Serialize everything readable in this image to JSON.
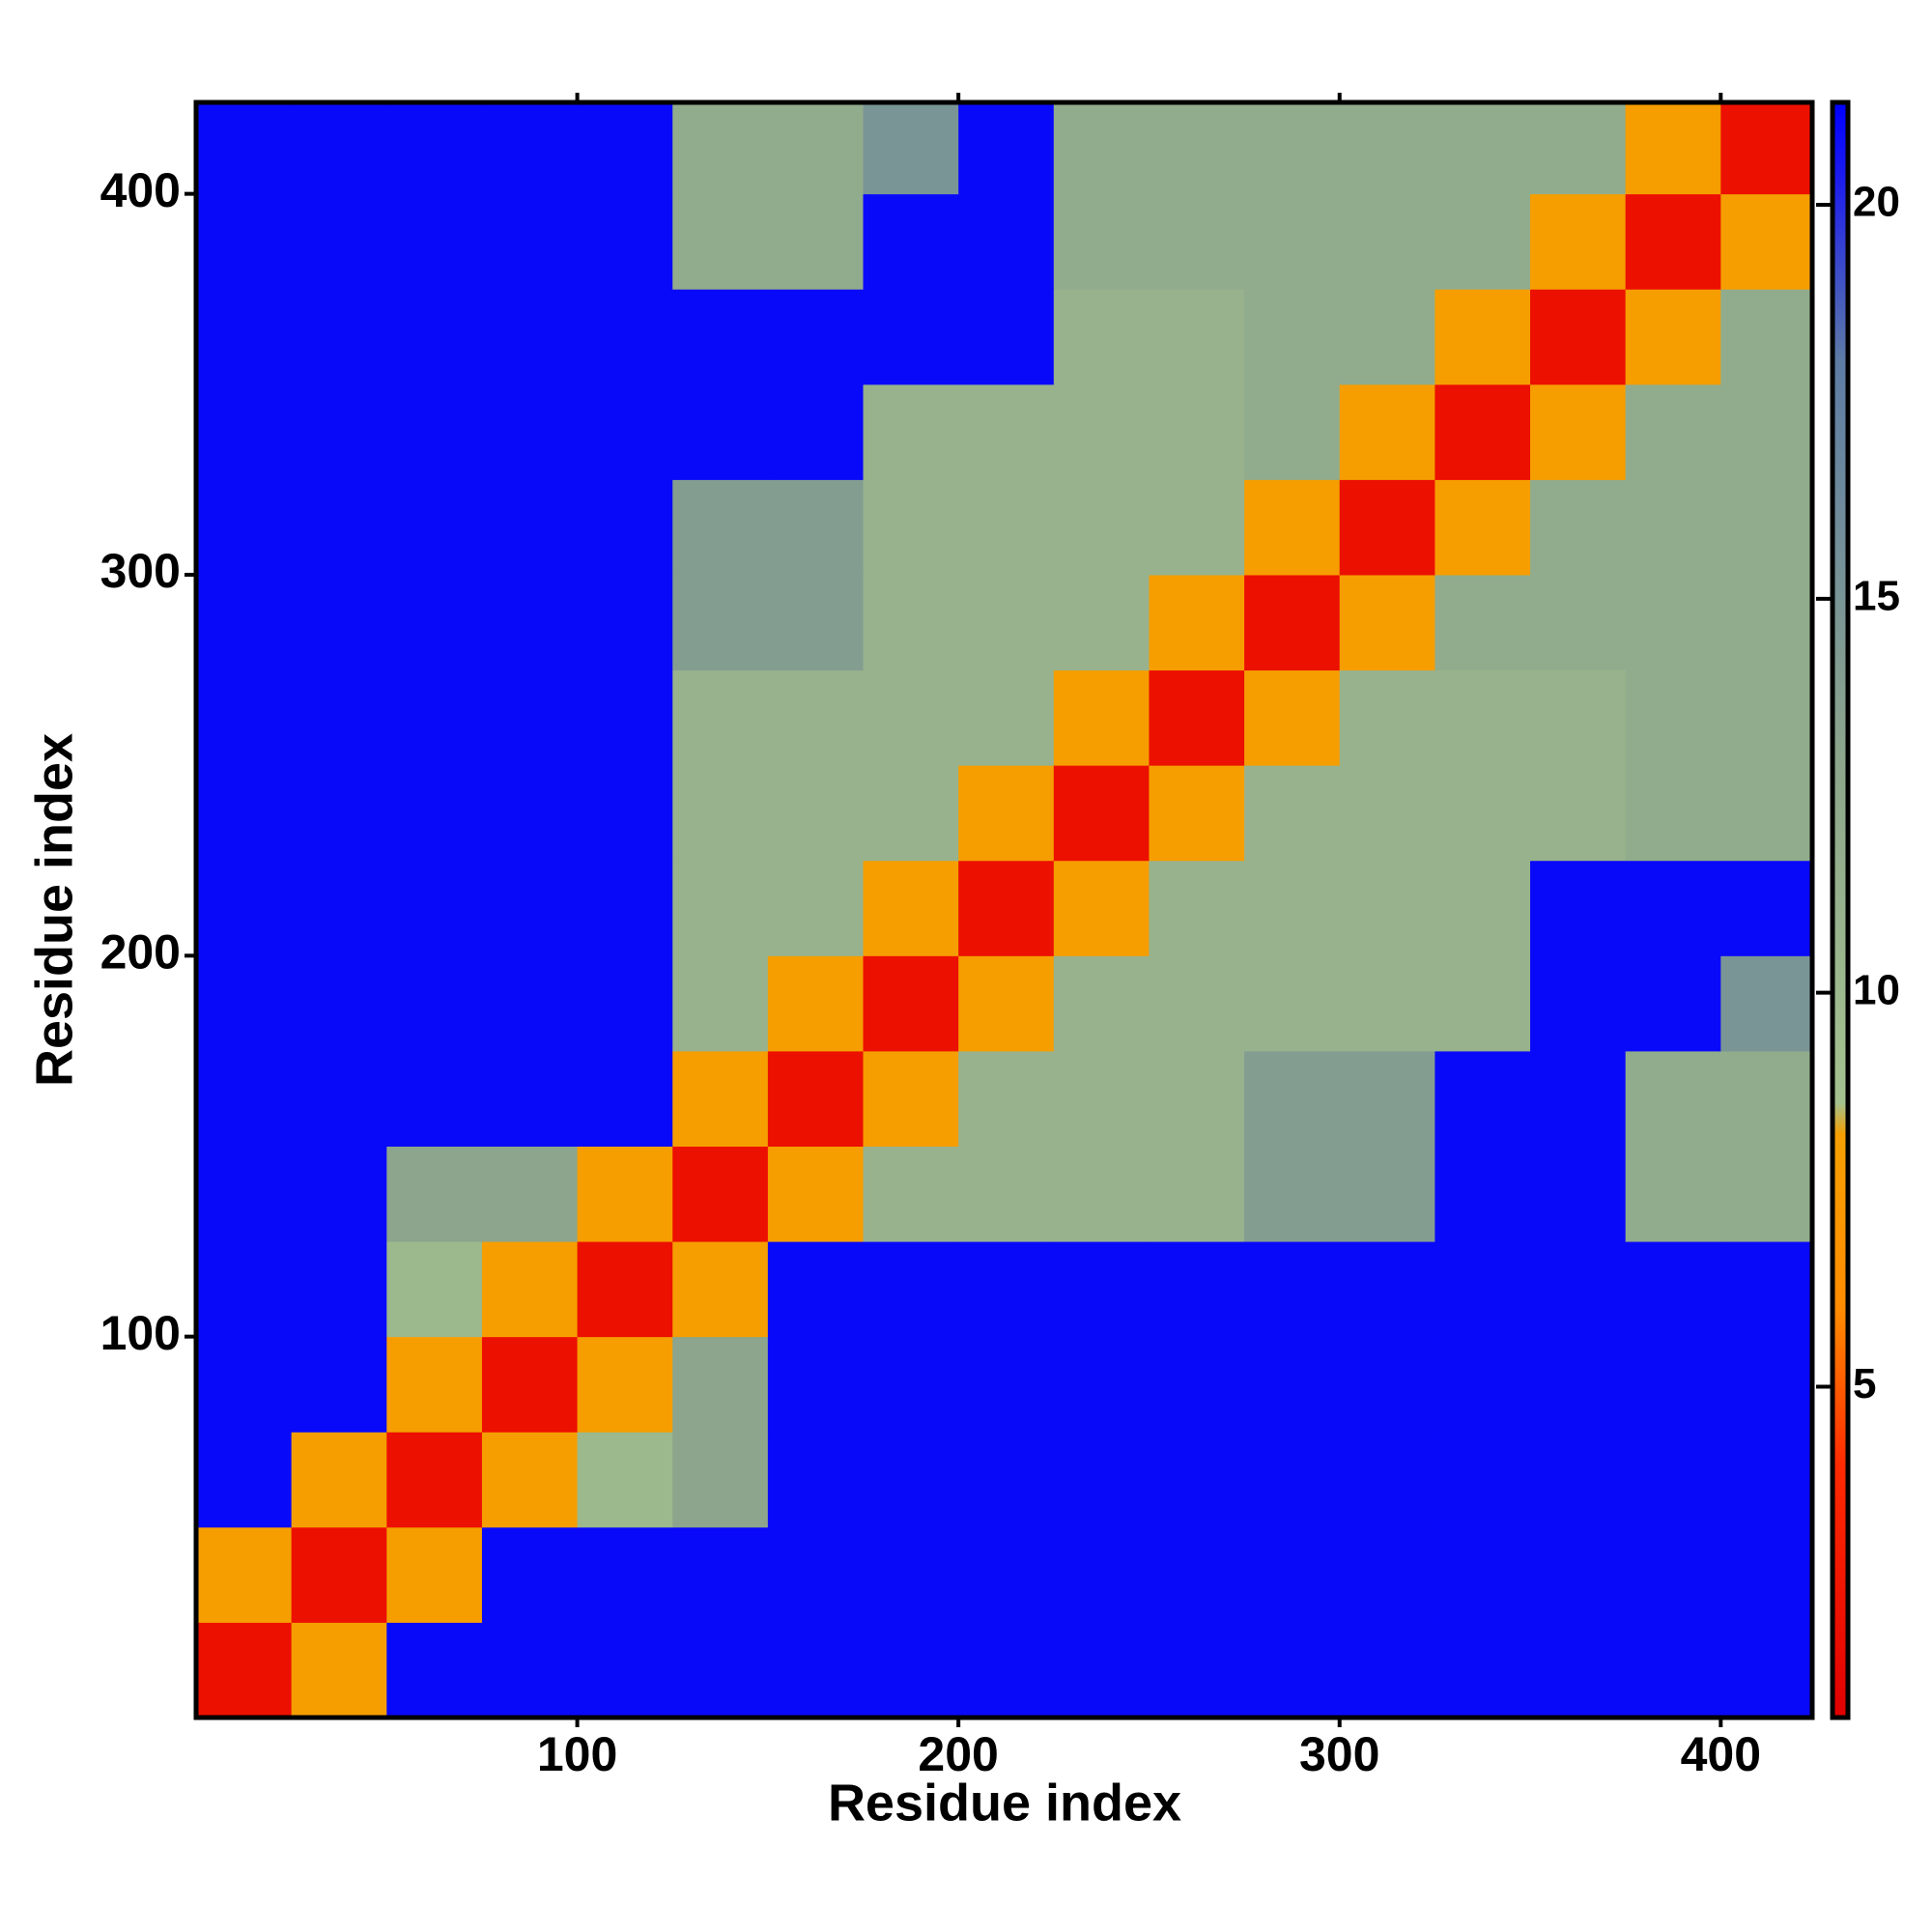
{
  "chart_data": {
    "type": "heatmap",
    "x_label": "Residue index",
    "y_label": "Residue index",
    "xlim": [
      0,
      424
    ],
    "ylim": [
      0,
      424
    ],
    "xticks": [
      100,
      200,
      300,
      400
    ],
    "yticks": [
      100,
      200,
      300,
      400
    ],
    "xbins": [
      0,
      25,
      50,
      75,
      100,
      125,
      150,
      175,
      200,
      225,
      250,
      275,
      300,
      325,
      350,
      375,
      400,
      425
    ],
    "ybins": [
      0,
      25,
      50,
      75,
      100,
      125,
      150,
      175,
      200,
      225,
      250,
      275,
      300,
      325,
      350,
      375,
      400,
      425
    ],
    "z": [
      [
        2,
        8,
        21,
        21,
        21,
        21,
        21,
        21,
        21,
        21,
        21,
        21,
        21,
        21,
        21,
        21,
        21
      ],
      [
        8,
        2,
        8,
        21,
        21,
        21,
        21,
        21,
        21,
        21,
        21,
        21,
        21,
        21,
        21,
        21,
        21
      ],
      [
        21,
        8,
        2,
        8,
        10,
        13,
        21,
        21,
        21,
        21,
        21,
        21,
        21,
        21,
        21,
        21,
        21
      ],
      [
        21,
        21,
        8,
        2,
        8,
        13,
        21,
        21,
        21,
        21,
        21,
        21,
        21,
        21,
        21,
        21,
        21
      ],
      [
        21,
        21,
        10,
        8,
        2,
        8,
        21,
        21,
        21,
        21,
        21,
        21,
        21,
        21,
        21,
        21,
        21
      ],
      [
        21,
        21,
        13,
        13,
        8,
        2,
        8,
        11,
        11,
        11,
        11,
        14,
        14,
        21,
        21,
        12,
        12
      ],
      [
        21,
        21,
        21,
        21,
        21,
        8,
        2,
        8,
        11,
        11,
        11,
        14,
        14,
        21,
        21,
        12,
        12
      ],
      [
        21,
        21,
        21,
        21,
        21,
        11,
        8,
        2,
        8,
        11,
        11,
        11,
        11,
        11,
        21,
        21,
        15
      ],
      [
        21,
        21,
        21,
        21,
        21,
        11,
        11,
        8,
        2,
        8,
        11,
        11,
        11,
        11,
        21,
        21,
        21
      ],
      [
        21,
        21,
        21,
        21,
        21,
        11,
        11,
        11,
        8,
        2,
        8,
        11,
        11,
        11,
        11,
        12,
        12
      ],
      [
        21,
        21,
        21,
        21,
        21,
        11,
        11,
        11,
        11,
        8,
        2,
        8,
        11,
        11,
        11,
        12,
        12
      ],
      [
        21,
        21,
        21,
        21,
        21,
        14,
        14,
        11,
        11,
        11,
        8,
        2,
        8,
        12,
        12,
        12,
        12
      ],
      [
        21,
        21,
        21,
        21,
        21,
        14,
        14,
        11,
        11,
        11,
        11,
        8,
        2,
        8,
        12,
        12,
        12
      ],
      [
        21,
        21,
        21,
        21,
        21,
        21,
        21,
        11,
        11,
        11,
        11,
        12,
        8,
        2,
        8,
        12,
        12
      ],
      [
        21,
        21,
        21,
        21,
        21,
        21,
        21,
        21,
        21,
        11,
        11,
        12,
        12,
        8,
        2,
        8,
        12
      ],
      [
        21,
        21,
        21,
        21,
        21,
        12,
        12,
        21,
        21,
        12,
        12,
        12,
        12,
        12,
        8,
        2,
        8
      ],
      [
        21,
        21,
        21,
        21,
        21,
        12,
        12,
        15,
        21,
        12,
        12,
        12,
        12,
        12,
        12,
        8,
        2
      ]
    ],
    "zlim": [
      0.8,
      21.3
    ],
    "zticks": [
      5,
      10,
      15,
      20
    ],
    "colorscale": [
      [
        0.8,
        "#e00000"
      ],
      [
        4,
        "#ff2a00"
      ],
      [
        6,
        "#ff8c00"
      ],
      [
        8.2,
        "#f5a000"
      ],
      [
        8.6,
        "#a4c28e"
      ],
      [
        13,
        "#8ca58c"
      ],
      [
        18,
        "#5e7ca4"
      ],
      [
        20.4,
        "#1a1af0"
      ],
      [
        21.3,
        "#0000ff"
      ]
    ]
  }
}
